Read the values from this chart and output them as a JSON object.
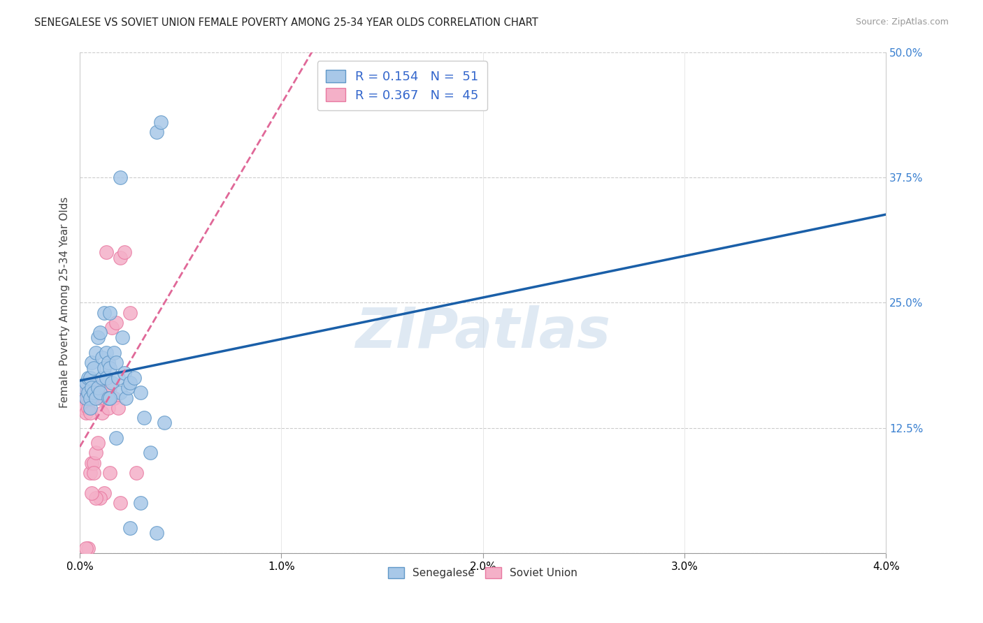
{
  "title": "SENEGALESE VS SOVIET UNION FEMALE POVERTY AMONG 25-34 YEAR OLDS CORRELATION CHART",
  "source": "Source: ZipAtlas.com",
  "ylabel": "Female Poverty Among 25-34 Year Olds",
  "xlim": [
    0.0,
    0.04
  ],
  "ylim": [
    0.0,
    0.5
  ],
  "xticks": [
    0.0,
    0.01,
    0.02,
    0.03,
    0.04
  ],
  "xtick_labels": [
    "0.0%",
    "1.0%",
    "2.0%",
    "3.0%",
    "4.0%"
  ],
  "yticks_right": [
    0.0,
    0.125,
    0.25,
    0.375,
    0.5
  ],
  "ytick_labels_right": [
    "",
    "12.5%",
    "25.0%",
    "37.5%",
    "50.0%"
  ],
  "senegalese_color": "#a8c8e8",
  "soviet_color": "#f4b0c8",
  "senegalese_edge_color": "#6098c8",
  "soviet_edge_color": "#e878a0",
  "senegalese_line_color": "#1a5fa8",
  "soviet_line_color": "#e06898",
  "watermark": "ZIPatlas",
  "senegalese_x": [
    0.0002,
    0.0003,
    0.0003,
    0.0004,
    0.0004,
    0.0005,
    0.0005,
    0.0005,
    0.0006,
    0.0006,
    0.0007,
    0.0007,
    0.0008,
    0.0008,
    0.0009,
    0.0009,
    0.001,
    0.001,
    0.0011,
    0.0011,
    0.0012,
    0.0012,
    0.0013,
    0.0013,
    0.0014,
    0.0014,
    0.0015,
    0.0015,
    0.0016,
    0.0017,
    0.0018,
    0.0019,
    0.002,
    0.0021,
    0.0022,
    0.0023,
    0.0024,
    0.0025,
    0.0027,
    0.003,
    0.0032,
    0.0035,
    0.0038,
    0.004,
    0.0042,
    0.002,
    0.0015,
    0.0018,
    0.0025,
    0.003,
    0.0038
  ],
  "senegalese_y": [
    0.165,
    0.17,
    0.155,
    0.16,
    0.175,
    0.155,
    0.145,
    0.175,
    0.165,
    0.19,
    0.16,
    0.185,
    0.155,
    0.2,
    0.165,
    0.215,
    0.16,
    0.22,
    0.175,
    0.195,
    0.185,
    0.24,
    0.175,
    0.2,
    0.19,
    0.155,
    0.185,
    0.24,
    0.17,
    0.2,
    0.19,
    0.175,
    0.16,
    0.215,
    0.18,
    0.155,
    0.165,
    0.17,
    0.175,
    0.16,
    0.135,
    0.1,
    0.42,
    0.43,
    0.13,
    0.375,
    0.155,
    0.115,
    0.025,
    0.05,
    0.02
  ],
  "soviet_x": [
    0.0001,
    0.0002,
    0.0002,
    0.0003,
    0.0003,
    0.0003,
    0.0004,
    0.0004,
    0.0004,
    0.0005,
    0.0005,
    0.0005,
    0.0006,
    0.0006,
    0.0007,
    0.0007,
    0.0008,
    0.0008,
    0.0009,
    0.0009,
    0.001,
    0.001,
    0.0011,
    0.0012,
    0.0013,
    0.0014,
    0.0015,
    0.0016,
    0.0017,
    0.0018,
    0.0019,
    0.002,
    0.0022,
    0.0025,
    0.0028,
    0.002,
    0.0012,
    0.0015,
    0.001,
    0.0008,
    0.0006,
    0.0004,
    0.0003,
    0.0007,
    0.0013
  ],
  "soviet_y": [
    0.155,
    0.145,
    0.16,
    0.14,
    0.155,
    0.165,
    0.145,
    0.165,
    0.155,
    0.14,
    0.16,
    0.08,
    0.09,
    0.165,
    0.155,
    0.09,
    0.17,
    0.1,
    0.16,
    0.11,
    0.165,
    0.155,
    0.14,
    0.155,
    0.16,
    0.145,
    0.165,
    0.225,
    0.155,
    0.23,
    0.145,
    0.295,
    0.3,
    0.24,
    0.08,
    0.05,
    0.06,
    0.08,
    0.055,
    0.055,
    0.06,
    0.005,
    0.005,
    0.08,
    0.3
  ]
}
